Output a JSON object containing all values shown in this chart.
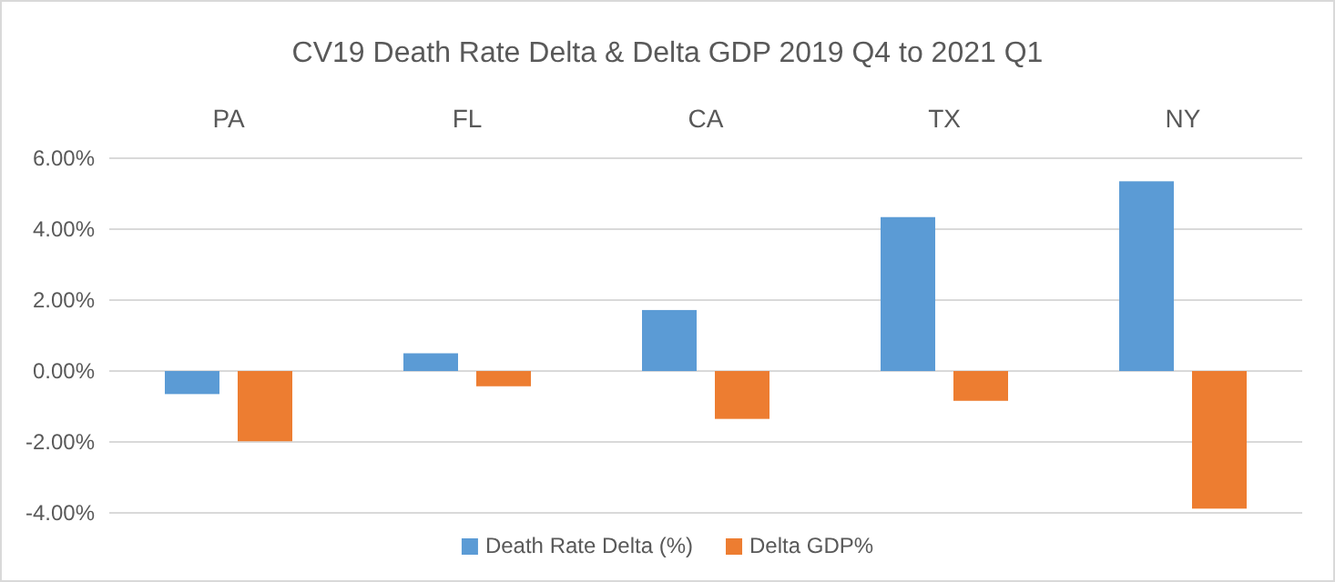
{
  "chart_data": {
    "type": "bar",
    "title": "CV19 Death Rate Delta & Delta GDP 2019 Q4 to 2021 Q1",
    "categories": [
      "PA",
      "FL",
      "CA",
      "TX",
      "NY"
    ],
    "series": [
      {
        "name": "Death Rate Delta (%)",
        "color": "#5b9bd5",
        "values": [
          -0.65,
          0.5,
          1.72,
          4.34,
          5.35
        ]
      },
      {
        "name": "Delta GDP%",
        "color": "#ed7d31",
        "values": [
          -1.98,
          -0.43,
          -1.35,
          -0.84,
          -3.88
        ]
      }
    ],
    "ylim": [
      -4,
      6
    ],
    "yticks": [
      {
        "value": -4,
        "label": "-4.00%"
      },
      {
        "value": -2,
        "label": "-2.00%"
      },
      {
        "value": 0,
        "label": "0.00%"
      },
      {
        "value": 2,
        "label": "2.00%"
      },
      {
        "value": 4,
        "label": "4.00%"
      },
      {
        "value": 6,
        "label": "6.00%"
      }
    ],
    "grid": "y",
    "legend": "bottom"
  }
}
